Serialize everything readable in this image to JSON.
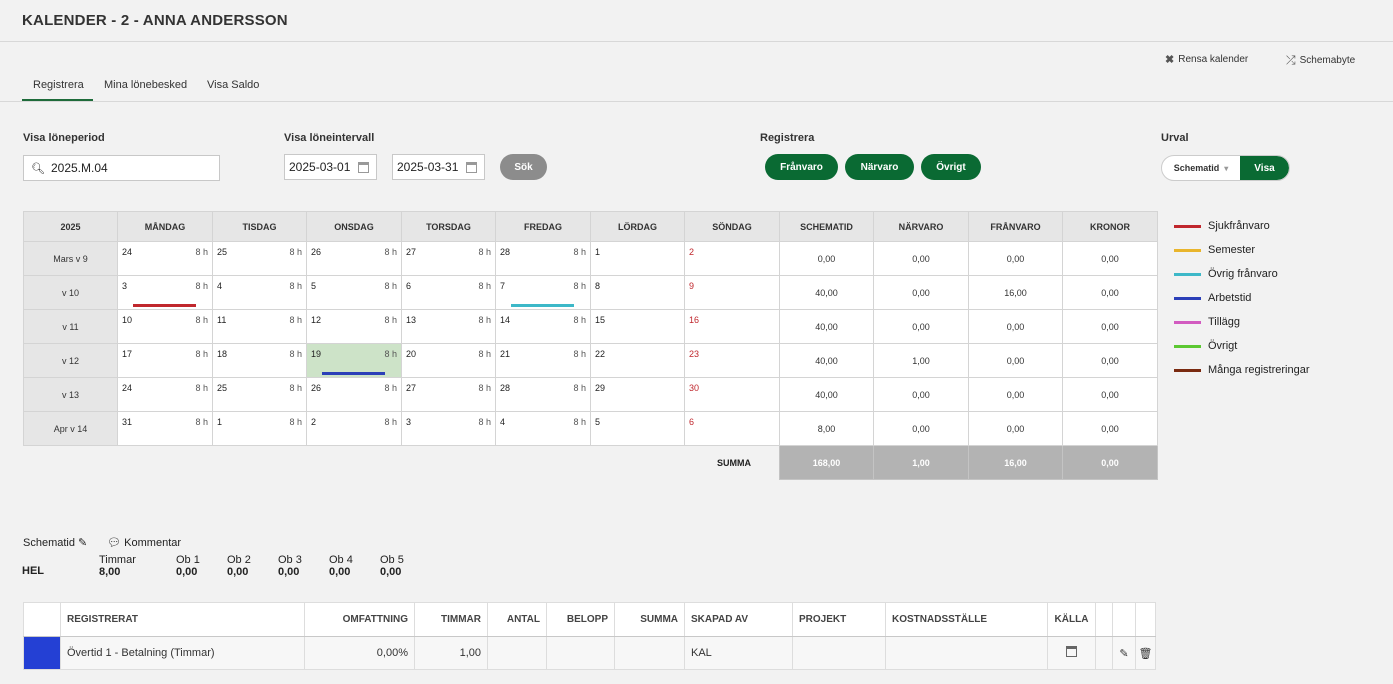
{
  "page_title": "KALENDER - 2 - ANNA ANDERSSON",
  "toplinks": {
    "clear": "Rensa kalender",
    "schedule_swap": "Schemabyte"
  },
  "tabs": [
    "Registrera",
    "Mina lönebesked",
    "Visa Saldo"
  ],
  "filters": {
    "period_label": "Visa löneperiod",
    "period_value": "2025.M.04",
    "interval_label": "Visa löneintervall",
    "date_from": "2025-03-01",
    "date_to": "2025-03-31",
    "search_button": "Sök",
    "register_label": "Registrera",
    "register_buttons": [
      "Frånvaro",
      "Närvaro",
      "Övrigt"
    ],
    "urval_label": "Urval",
    "urval_select": "Schematid",
    "urval_button": "Visa"
  },
  "calendar": {
    "headers": [
      "2025",
      "MÅNDAG",
      "TISDAG",
      "ONSDAG",
      "TORSDAG",
      "FREDAG",
      "LÖRDAG",
      "SÖNDAG",
      "SCHEMATID",
      "NÄRVARO",
      "FRÅNVARO",
      "KRONOR"
    ],
    "rows": [
      {
        "week": "Mars v 9",
        "days": [
          {
            "d": "24",
            "h": "8 h"
          },
          {
            "d": "25",
            "h": "8 h"
          },
          {
            "d": "26",
            "h": "8 h"
          },
          {
            "d": "27",
            "h": "8 h"
          },
          {
            "d": "28",
            "h": "8 h"
          },
          {
            "d": "1",
            "h": ""
          },
          {
            "d": "2",
            "h": "",
            "red": true
          }
        ],
        "sums": [
          "0,00",
          "0,00",
          "0,00",
          "0,00"
        ]
      },
      {
        "week": "v 10",
        "days": [
          {
            "d": "3",
            "h": "8 h",
            "bar": "#c0272d"
          },
          {
            "d": "4",
            "h": "8 h"
          },
          {
            "d": "5",
            "h": "8 h"
          },
          {
            "d": "6",
            "h": "8 h"
          },
          {
            "d": "7",
            "h": "8 h",
            "bar": "#3db8c8"
          },
          {
            "d": "8",
            "h": ""
          },
          {
            "d": "9",
            "h": "",
            "red": true
          }
        ],
        "sums": [
          "40,00",
          "0,00",
          "16,00",
          "0,00"
        ]
      },
      {
        "week": "v 11",
        "days": [
          {
            "d": "10",
            "h": "8 h"
          },
          {
            "d": "11",
            "h": "8 h"
          },
          {
            "d": "12",
            "h": "8 h"
          },
          {
            "d": "13",
            "h": "8 h"
          },
          {
            "d": "14",
            "h": "8 h"
          },
          {
            "d": "15",
            "h": ""
          },
          {
            "d": "16",
            "h": "",
            "red": true
          }
        ],
        "sums": [
          "40,00",
          "0,00",
          "0,00",
          "0,00"
        ]
      },
      {
        "week": "v 12",
        "days": [
          {
            "d": "17",
            "h": "8 h"
          },
          {
            "d": "18",
            "h": "8 h"
          },
          {
            "d": "19",
            "h": "8 h",
            "bar": "#2b3fb8",
            "hl": true
          },
          {
            "d": "20",
            "h": "8 h"
          },
          {
            "d": "21",
            "h": "8 h"
          },
          {
            "d": "22",
            "h": ""
          },
          {
            "d": "23",
            "h": "",
            "red": true
          }
        ],
        "sums": [
          "40,00",
          "1,00",
          "0,00",
          "0,00"
        ]
      },
      {
        "week": "v 13",
        "days": [
          {
            "d": "24",
            "h": "8 h"
          },
          {
            "d": "25",
            "h": "8 h"
          },
          {
            "d": "26",
            "h": "8 h"
          },
          {
            "d": "27",
            "h": "8 h"
          },
          {
            "d": "28",
            "h": "8 h"
          },
          {
            "d": "29",
            "h": ""
          },
          {
            "d": "30",
            "h": "",
            "red": true
          }
        ],
        "sums": [
          "40,00",
          "0,00",
          "0,00",
          "0,00"
        ]
      },
      {
        "week": "Apr v 14",
        "days": [
          {
            "d": "31",
            "h": "8 h"
          },
          {
            "d": "1",
            "h": "8 h"
          },
          {
            "d": "2",
            "h": "8 h"
          },
          {
            "d": "3",
            "h": "8 h"
          },
          {
            "d": "4",
            "h": "8 h"
          },
          {
            "d": "5",
            "h": ""
          },
          {
            "d": "6",
            "h": "",
            "red": true
          }
        ],
        "sums": [
          "8,00",
          "0,00",
          "0,00",
          "0,00"
        ]
      }
    ],
    "summa_label": "SUMMA",
    "summa": [
      "168,00",
      "1,00",
      "16,00",
      "0,00"
    ]
  },
  "legend": [
    {
      "label": "Sjukfrånvaro",
      "color": "#c0272d"
    },
    {
      "label": "Semester",
      "color": "#e9b52c"
    },
    {
      "label": "Övrig frånvaro",
      "color": "#3db8c8"
    },
    {
      "label": "Arbetstid",
      "color": "#2b3fb8"
    },
    {
      "label": "Tillägg",
      "color": "#d25bc0"
    },
    {
      "label": "Övrigt",
      "color": "#5cc832"
    },
    {
      "label": "Många registreringar",
      "color": "#7a2a10"
    }
  ],
  "schedule": {
    "schematid_link": "Schematid",
    "comment_link": "Kommentar",
    "row_label": "HEL",
    "cols": [
      {
        "h": "Timmar",
        "v": "8,00"
      },
      {
        "h": "Ob 1",
        "v": "0,00"
      },
      {
        "h": "Ob 2",
        "v": "0,00"
      },
      {
        "h": "Ob 3",
        "v": "0,00"
      },
      {
        "h": "Ob 4",
        "v": "0,00"
      },
      {
        "h": "Ob 5",
        "v": "0,00"
      }
    ]
  },
  "registrations": {
    "headers": [
      "REGISTRERAT",
      "OMFATTNING",
      "TIMMAR",
      "ANTAL",
      "BELOPP",
      "SUMMA",
      "SKAPAD AV",
      "PROJEKT",
      "KOSTNADSSTÄLLE",
      "KÄLLA"
    ],
    "rows": [
      {
        "color": "#2440d4",
        "registrerat": "Övertid 1 - Betalning (Timmar)",
        "omfattning": "0,00%",
        "timmar": "1,00",
        "antal": "",
        "belopp": "",
        "summa": "",
        "skapad_av": "KAL",
        "projekt": "",
        "kostnadsstalle": ""
      }
    ]
  }
}
